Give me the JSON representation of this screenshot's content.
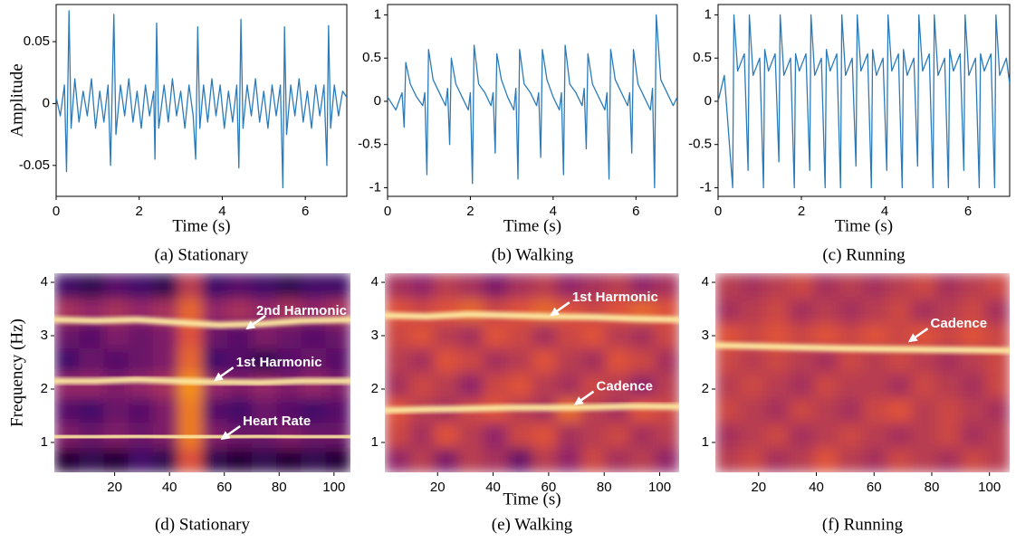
{
  "chart_data": [
    {
      "type": "line",
      "title": "(a) Stationary",
      "xlabel": "Time (s)",
      "ylabel": "Amplitude",
      "x": [
        0,
        0.1,
        0.2,
        0.25,
        0.31,
        0.36,
        0.45,
        0.55,
        0.65,
        0.75,
        0.85,
        0.95,
        1.05,
        1.15,
        1.25,
        1.31,
        1.39,
        1.44,
        1.55,
        1.65,
        1.75,
        1.85,
        1.95,
        2.05,
        2.15,
        2.25,
        2.35,
        2.38,
        2.42,
        2.47,
        2.6,
        2.7,
        2.8,
        2.9,
        3.0,
        3.1,
        3.2,
        3.3,
        3.36,
        3.41,
        3.46,
        3.55,
        3.65,
        3.75,
        3.85,
        3.95,
        4.05,
        4.15,
        4.25,
        4.35,
        4.4,
        4.45,
        4.5,
        4.6,
        4.7,
        4.8,
        4.9,
        5.0,
        5.1,
        5.2,
        5.3,
        5.4,
        5.46,
        5.5,
        5.55,
        5.65,
        5.75,
        5.85,
        5.95,
        6.05,
        6.15,
        6.25,
        6.35,
        6.45,
        6.52,
        6.56,
        6.61,
        6.7,
        6.8,
        6.9,
        7.0
      ],
      "series": [
        {
          "color": "#2b7bba",
          "values": [
            0.005,
            -0.01,
            0.015,
            -0.055,
            0.075,
            -0.02,
            0.02,
            -0.015,
            0.01,
            -0.01,
            0.02,
            -0.02,
            0.01,
            -0.015,
            0.015,
            -0.05,
            0.072,
            -0.025,
            0.015,
            -0.01,
            0.02,
            -0.015,
            0.01,
            -0.02,
            0.015,
            -0.01,
            0.01,
            -0.045,
            0.065,
            -0.02,
            0.015,
            -0.015,
            0.02,
            -0.01,
            0.01,
            -0.02,
            0.015,
            -0.01,
            -0.045,
            0.062,
            -0.02,
            0.015,
            -0.015,
            0.02,
            -0.01,
            0.015,
            -0.02,
            0.01,
            -0.015,
            0.015,
            -0.052,
            0.068,
            -0.02,
            0.015,
            -0.01,
            0.02,
            -0.015,
            0.01,
            -0.02,
            0.015,
            -0.01,
            0.015,
            -0.068,
            0.062,
            -0.025,
            0.015,
            -0.01,
            0.02,
            -0.015,
            0.01,
            -0.02,
            0.015,
            -0.01,
            0.015,
            -0.05,
            0.063,
            -0.02,
            0.015,
            -0.01,
            0.01,
            0.005
          ]
        }
      ],
      "xlim": [
        0,
        7
      ],
      "ylim": [
        -0.075,
        0.08
      ],
      "xticks": [
        0,
        2,
        4,
        6
      ],
      "yticks": [
        -0.05,
        0,
        0.05
      ]
    },
    {
      "type": "line",
      "title": "(b) Walking",
      "xlabel": "Time (s)",
      "x": [
        0,
        0.2,
        0.35,
        0.4,
        0.44,
        0.55,
        0.7,
        0.85,
        0.9,
        0.95,
        0.99,
        1.1,
        1.25,
        1.4,
        1.45,
        1.5,
        1.54,
        1.65,
        1.8,
        1.95,
        2.0,
        2.05,
        2.09,
        2.2,
        2.35,
        2.5,
        2.55,
        2.6,
        2.64,
        2.75,
        2.9,
        3.05,
        3.1,
        3.15,
        3.19,
        3.3,
        3.45,
        3.6,
        3.65,
        3.7,
        3.74,
        3.85,
        4.0,
        4.15,
        4.2,
        4.25,
        4.29,
        4.4,
        4.55,
        4.7,
        4.75,
        4.8,
        4.84,
        4.95,
        5.1,
        5.25,
        5.3,
        5.35,
        5.39,
        5.5,
        5.65,
        5.8,
        5.85,
        5.9,
        5.94,
        6.05,
        6.2,
        6.35,
        6.4,
        6.45,
        6.49,
        6.6,
        6.75,
        6.9,
        7.0
      ],
      "series": [
        {
          "color": "#2b7bba",
          "values": [
            0.05,
            -0.1,
            0.1,
            -0.3,
            0.45,
            0.2,
            0.05,
            -0.05,
            0.1,
            -0.85,
            0.6,
            0.25,
            0.1,
            -0.05,
            0.15,
            -0.5,
            0.5,
            0.2,
            0.05,
            -0.1,
            0.1,
            -0.95,
            0.65,
            0.2,
            0.1,
            -0.05,
            0.1,
            -0.6,
            0.55,
            0.25,
            0.05,
            -0.1,
            0.15,
            -0.9,
            0.6,
            0.2,
            0.1,
            -0.05,
            0.1,
            -0.65,
            0.6,
            0.25,
            0.05,
            -0.1,
            0.1,
            -0.85,
            0.65,
            0.2,
            0.1,
            -0.05,
            0.15,
            -0.55,
            0.55,
            0.2,
            0.05,
            -0.1,
            0.1,
            -0.9,
            0.6,
            0.25,
            0.1,
            -0.05,
            0.1,
            -0.6,
            0.6,
            0.2,
            0.05,
            -0.1,
            0.15,
            -1.0,
            1.0,
            0.25,
            0.1,
            -0.05,
            0.05
          ]
        }
      ],
      "xlim": [
        0,
        7
      ],
      "ylim": [
        -1.1,
        1.12
      ],
      "xticks": [
        0,
        2,
        4,
        6
      ],
      "yticks": [
        -1,
        -0.5,
        0,
        0.5,
        1
      ]
    },
    {
      "type": "line",
      "title": "(c) Running",
      "xlabel": "Time (s)",
      "x": [
        0,
        0.15,
        0.35,
        0.38,
        0.47,
        0.63,
        0.72,
        0.75,
        0.84,
        1.0,
        1.09,
        1.12,
        1.21,
        1.37,
        1.46,
        1.49,
        1.58,
        1.74,
        1.83,
        1.86,
        1.95,
        2.11,
        2.2,
        2.23,
        2.32,
        2.48,
        2.57,
        2.6,
        2.69,
        2.85,
        2.94,
        2.97,
        3.06,
        3.22,
        3.31,
        3.34,
        3.43,
        3.59,
        3.68,
        3.71,
        3.8,
        3.96,
        4.05,
        4.08,
        4.17,
        4.33,
        4.42,
        4.45,
        4.54,
        4.7,
        4.79,
        4.82,
        4.91,
        5.07,
        5.16,
        5.19,
        5.28,
        5.44,
        5.53,
        5.56,
        5.65,
        5.81,
        5.9,
        5.93,
        6.02,
        6.18,
        6.27,
        6.3,
        6.39,
        6.55,
        6.64,
        6.67,
        6.76,
        6.92,
        7.0
      ],
      "series": [
        {
          "color": "#2b7bba",
          "values": [
            0,
            0.3,
            -1.0,
            1.0,
            0.35,
            0.55,
            -0.8,
            1.0,
            0.3,
            0.5,
            -1.0,
            0.6,
            0.35,
            0.55,
            -0.7,
            1.0,
            0.3,
            0.5,
            -1.0,
            0.55,
            0.35,
            0.55,
            -0.8,
            1.0,
            0.3,
            0.5,
            -1.0,
            0.6,
            0.35,
            0.55,
            -1.0,
            1.0,
            0.3,
            0.5,
            -0.75,
            1.0,
            0.35,
            0.55,
            -1.0,
            0.6,
            0.3,
            0.5,
            -0.8,
            1.0,
            0.35,
            0.55,
            -1.0,
            0.6,
            0.3,
            0.5,
            -0.75,
            1.0,
            0.35,
            0.55,
            -1.0,
            1.0,
            0.3,
            0.5,
            -1.0,
            0.6,
            0.35,
            0.55,
            -0.8,
            1.0,
            0.3,
            0.5,
            -1.0,
            0.55,
            0.35,
            0.55,
            -1.0,
            1.0,
            0.3,
            0.5,
            0.2
          ]
        }
      ],
      "xlim": [
        0,
        7
      ],
      "ylim": [
        -1.1,
        1.12
      ],
      "xticks": [
        0,
        2,
        4,
        6
      ],
      "yticks": [
        -1,
        -0.5,
        0,
        0.5,
        1
      ]
    },
    {
      "type": "spectrogram",
      "title": "(d) Stationary",
      "ylabel": "Frequency (Hz)",
      "colormap": [
        "#000004",
        "#420a68",
        "#932667",
        "#dd513a",
        "#fca50a",
        "#fcffa4"
      ],
      "z": [
        [
          0.1,
          0.15,
          0.1,
          0.2,
          0.15,
          0.6,
          0.15,
          0.1,
          0.15,
          0.1,
          0.15,
          0.1
        ],
        [
          0.35,
          0.3,
          0.35,
          0.3,
          0.35,
          0.7,
          0.35,
          0.3,
          0.3,
          0.35,
          0.3,
          0.3
        ],
        [
          0.25,
          0.2,
          0.3,
          0.25,
          0.35,
          0.7,
          0.25,
          0.2,
          0.3,
          0.25,
          0.2,
          0.25
        ],
        [
          0.4,
          0.4,
          0.35,
          0.4,
          0.45,
          0.75,
          0.4,
          0.35,
          0.4,
          0.35,
          0.4,
          0.35
        ],
        [
          0.2,
          0.3,
          0.25,
          0.3,
          0.35,
          0.65,
          0.2,
          0.25,
          0.15,
          0.25,
          0.3,
          0.25
        ],
        [
          0.3,
          0.25,
          0.35,
          0.3,
          0.35,
          0.6,
          0.3,
          0.25,
          0.35,
          0.3,
          0.25,
          0.3
        ],
        [
          0.45,
          0.4,
          0.45,
          0.4,
          0.45,
          0.65,
          0.4,
          0.45,
          0.4,
          0.45,
          0.4,
          0.45
        ],
        [
          0.2,
          0.15,
          0.25,
          0.2,
          0.15,
          0.5,
          0.2,
          0.25,
          0.2,
          0.15,
          0.2,
          0.2
        ]
      ],
      "x": [
        -2,
        13,
        28,
        43,
        58,
        73,
        88,
        106
      ],
      "series": [
        {
          "color": "#fde9a0",
          "values": [
            1.1,
            1.1,
            1.12,
            1.1,
            1.1,
            1.12,
            1.1,
            1.1
          ]
        },
        {
          "color": "#fde9a0",
          "values": [
            2.15,
            2.15,
            2.18,
            2.15,
            2.13,
            2.12,
            2.15,
            2.15
          ]
        },
        {
          "color": "#fde9a0",
          "values": [
            3.3,
            3.28,
            3.3,
            3.25,
            3.2,
            3.22,
            3.28,
            3.3
          ]
        }
      ],
      "annotations": [
        {
          "text": "2nd Harmonic",
          "x": 67.7,
          "y": 3.12
        },
        {
          "text": "1st Harmonic",
          "x": 56,
          "y": 2.15
        },
        {
          "text": "Heart Rate",
          "x": 58.5,
          "y": 1.05
        }
      ],
      "xlim": [
        -2,
        106
      ],
      "ylim": [
        0.44,
        4.17
      ],
      "xticks": [
        20,
        40,
        60,
        80,
        100
      ],
      "yticks": [
        1,
        2,
        3,
        4
      ]
    },
    {
      "type": "spectrogram",
      "title": "(e) Walking",
      "xlabel": "Time (s)",
      "colormap": [
        "#000004",
        "#420a68",
        "#932667",
        "#dd513a",
        "#fca50a",
        "#fcffa4"
      ],
      "z": [
        [
          0.4,
          0.5,
          0.35,
          0.5,
          0.45,
          0.3,
          0.5,
          0.4,
          0.55,
          0.45,
          0.5,
          0.4
        ],
        [
          0.55,
          0.45,
          0.6,
          0.5,
          0.4,
          0.55,
          0.6,
          0.45,
          0.5,
          0.55,
          0.45,
          0.5
        ],
        [
          0.6,
          0.5,
          0.45,
          0.55,
          0.6,
          0.5,
          0.45,
          0.65,
          0.5,
          0.45,
          0.6,
          0.55
        ],
        [
          0.45,
          0.55,
          0.5,
          0.4,
          0.55,
          0.6,
          0.5,
          0.45,
          0.55,
          0.5,
          0.4,
          0.5
        ],
        [
          0.5,
          0.45,
          0.6,
          0.55,
          0.45,
          0.5,
          0.6,
          0.5,
          0.45,
          0.6,
          0.55,
          0.45
        ],
        [
          0.55,
          0.6,
          0.5,
          0.45,
          0.6,
          0.55,
          0.45,
          0.55,
          0.6,
          0.5,
          0.45,
          0.55
        ],
        [
          0.6,
          0.55,
          0.6,
          0.65,
          0.55,
          0.6,
          0.65,
          0.6,
          0.55,
          0.6,
          0.65,
          0.6
        ],
        [
          0.45,
          0.4,
          0.5,
          0.45,
          0.35,
          0.45,
          0.5,
          0.4,
          0.45,
          0.5,
          0.4,
          0.45
        ]
      ],
      "x": [
        1,
        16,
        31,
        46,
        61,
        76,
        91,
        107
      ],
      "series": [
        {
          "color": "#fde9a0",
          "values": [
            3.38,
            3.36,
            3.4,
            3.38,
            3.36,
            3.35,
            3.32,
            3.3
          ]
        },
        {
          "color": "#fde9a0",
          "values": [
            1.6,
            1.62,
            1.63,
            1.65,
            1.65,
            1.66,
            1.68,
            1.67
          ]
        }
      ],
      "annotations": [
        {
          "text": "1st Harmonic",
          "x": 60.3,
          "y": 3.37
        },
        {
          "text": "Cadence",
          "x": 69,
          "y": 1.7
        }
      ],
      "xlim": [
        1,
        107
      ],
      "ylim": [
        0.44,
        4.17
      ],
      "xticks": [
        20,
        40,
        60,
        80,
        100
      ],
      "yticks": [
        1,
        2,
        3,
        4
      ]
    },
    {
      "type": "spectrogram",
      "title": "(f) Running",
      "colormap": [
        "#000004",
        "#420a68",
        "#932667",
        "#dd513a",
        "#fca50a",
        "#fcffa4"
      ],
      "z": [
        [
          0.5,
          0.55,
          0.45,
          0.5,
          0.6,
          0.5,
          0.45,
          0.55,
          0.5,
          0.45,
          0.55,
          0.5
        ],
        [
          0.45,
          0.5,
          0.55,
          0.45,
          0.5,
          0.55,
          0.5,
          0.45,
          0.5,
          0.55,
          0.45,
          0.5
        ],
        [
          0.55,
          0.5,
          0.45,
          0.55,
          0.5,
          0.45,
          0.55,
          0.6,
          0.5,
          0.55,
          0.5,
          0.45
        ],
        [
          0.5,
          0.55,
          0.5,
          0.45,
          0.55,
          0.5,
          0.5,
          0.45,
          0.55,
          0.5,
          0.45,
          0.55
        ],
        [
          0.55,
          0.5,
          0.55,
          0.5,
          0.45,
          0.55,
          0.5,
          0.55,
          0.5,
          0.45,
          0.5,
          0.55
        ],
        [
          0.6,
          0.55,
          0.6,
          0.55,
          0.6,
          0.55,
          0.6,
          0.55,
          0.6,
          0.55,
          0.6,
          0.55
        ],
        [
          0.45,
          0.5,
          0.55,
          0.45,
          0.5,
          0.45,
          0.5,
          0.55,
          0.45,
          0.5,
          0.55,
          0.45
        ],
        [
          0.5,
          0.45,
          0.5,
          0.55,
          0.45,
          0.5,
          0.45,
          0.5,
          0.55,
          0.45,
          0.5,
          0.55
        ]
      ],
      "x": [
        5,
        20,
        35,
        50,
        65,
        80,
        95,
        107
      ],
      "series": [
        {
          "color": "#fde9a0",
          "values": [
            2.82,
            2.8,
            2.78,
            2.76,
            2.75,
            2.74,
            2.73,
            2.72
          ]
        }
      ],
      "annotations": [
        {
          "text": "Cadence",
          "x": 71.7,
          "y": 2.88
        }
      ],
      "xlim": [
        5,
        107
      ],
      "ylim": [
        0.44,
        4.17
      ],
      "xticks": [
        20,
        40,
        60,
        80,
        100
      ],
      "yticks": [
        1,
        2,
        3,
        4
      ]
    }
  ]
}
